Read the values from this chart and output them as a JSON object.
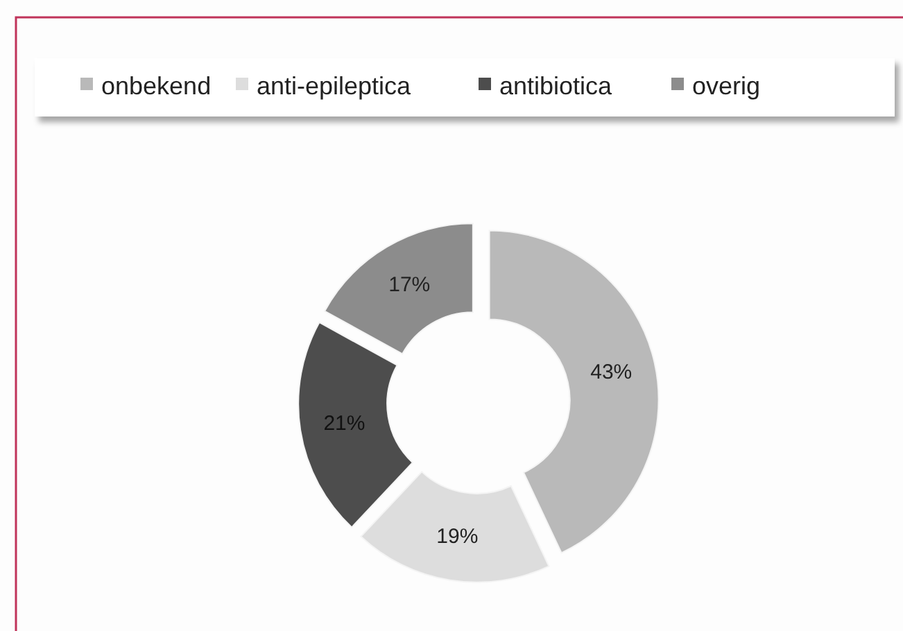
{
  "chart_data": {
    "type": "donut",
    "categories": [
      "onbekend",
      "anti-epileptica",
      "antibiotica",
      "overig"
    ],
    "values": [
      43,
      19,
      21,
      17
    ],
    "colors": [
      "#b9b9b9",
      "#dddddd",
      "#4d4d4d",
      "#8c8c8c"
    ],
    "value_labels": [
      "43%",
      "19%",
      "21%",
      "17%"
    ],
    "legend": "top"
  }
}
